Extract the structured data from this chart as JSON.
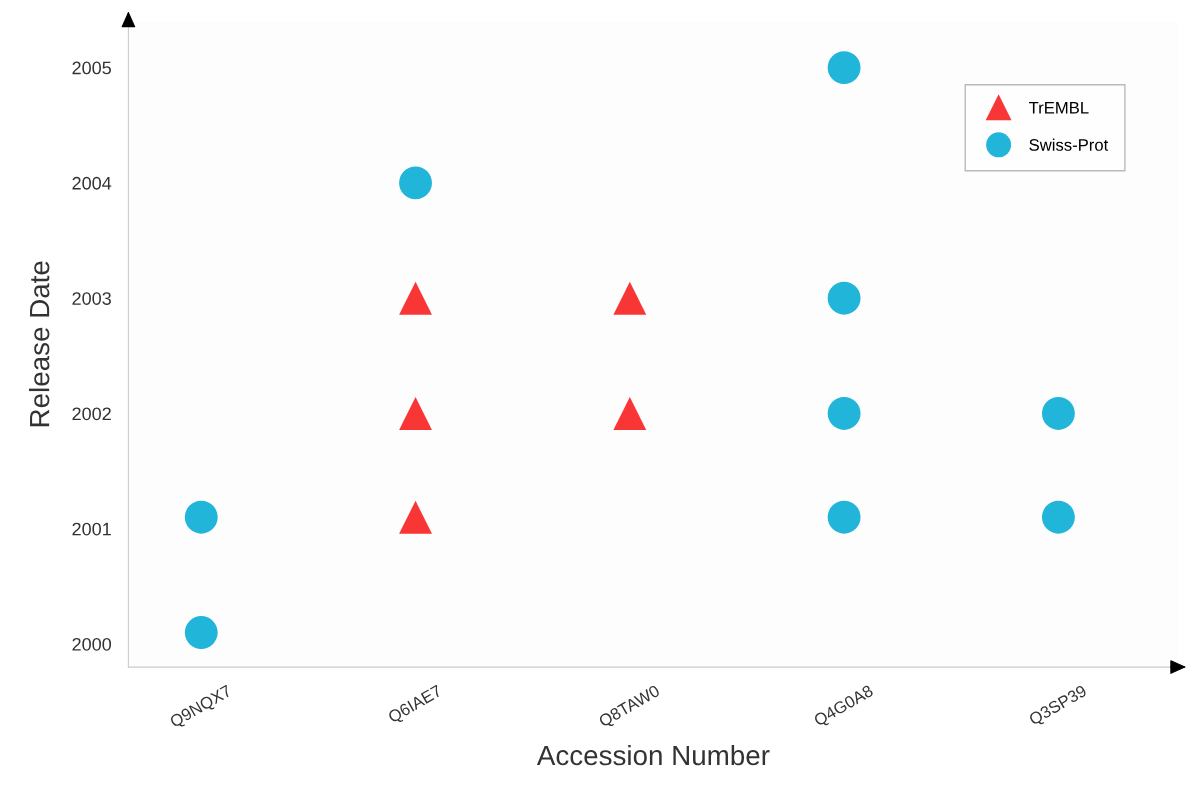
{
  "chart_data": {
    "type": "scatter",
    "xlabel": "Accession Number",
    "ylabel": "Release Date",
    "categories": [
      "Q9NQX7",
      "Q6IAE7",
      "Q8TAW0",
      "Q4G0A8",
      "Q3SP39"
    ],
    "series": [
      {
        "name": "TrEMBL",
        "color": "#f93636",
        "marker": "triangle",
        "x": [
          "Q6IAE7",
          "Q6IAE7",
          "Q6IAE7",
          "Q8TAW0",
          "Q8TAW0"
        ],
        "values": [
          2003,
          2002,
          2001.1,
          2003,
          2002
        ]
      },
      {
        "name": "Swiss-Prot",
        "color": "#22b5da",
        "marker": "circle",
        "x": [
          "Q9NQX7",
          "Q9NQX7",
          "Q6IAE7",
          "Q4G0A8",
          "Q4G0A8",
          "Q4G0A8",
          "Q4G0A8",
          "Q3SP39",
          "Q3SP39"
        ],
        "values": [
          2001.1,
          2000.1,
          2004,
          2005,
          2003,
          2002,
          2001.1,
          2002,
          2001.1
        ]
      }
    ],
    "ylim": [
      1999.8,
      2005.4
    ],
    "yticks": [
      2000,
      2001,
      2002,
      2003,
      2004,
      2005
    ],
    "grid": false,
    "legend": "top right"
  }
}
